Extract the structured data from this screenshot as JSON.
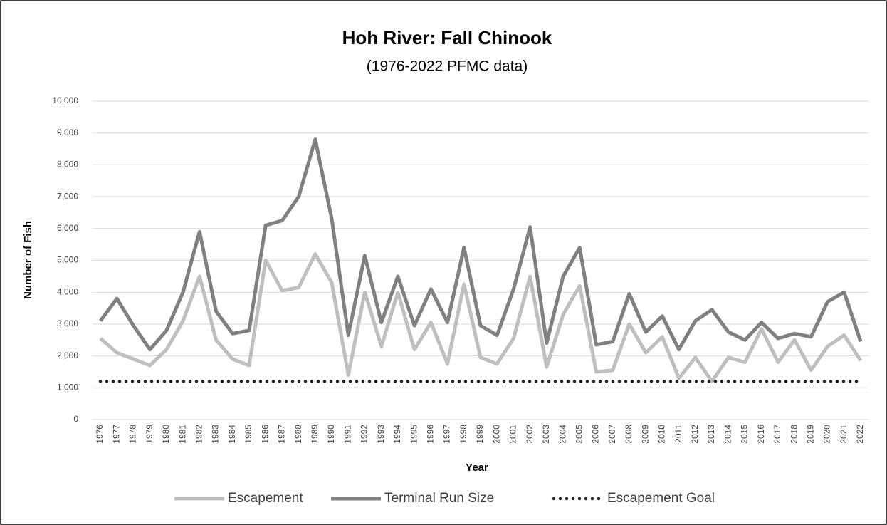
{
  "chart_data": {
    "type": "line",
    "title": "Hoh River: Fall Chinook",
    "subtitle": "(1976-2022 PFMC data)",
    "x_label": "Year",
    "y_label": "Number of Fish",
    "categories": [
      "1976",
      "1977",
      "1978",
      "1979",
      "1980",
      "1981",
      "1982",
      "1983",
      "1984",
      "1985",
      "1986",
      "1987",
      "1988",
      "1989",
      "1990",
      "1991",
      "1992",
      "1993",
      "1994",
      "1995",
      "1996",
      "1997",
      "1998",
      "1999",
      "2000",
      "2001",
      "2002",
      "2003",
      "2004",
      "2005",
      "2006",
      "2007",
      "2008",
      "2009",
      "2010",
      "2011",
      "2012",
      "2013",
      "2014",
      "2015",
      "2016",
      "2017",
      "2018",
      "2019",
      "2020",
      "2021",
      "2022"
    ],
    "series": [
      {
        "name": "Escapement",
        "color": "#bfbfbf",
        "dash": "solid",
        "values": [
          2550,
          2100,
          1900,
          1700,
          2200,
          3100,
          4500,
          2500,
          1900,
          1700,
          5000,
          4050,
          4150,
          5200,
          4300,
          1400,
          4000,
          2300,
          4000,
          2200,
          3050,
          1750,
          4250,
          1950,
          1750,
          2550,
          4500,
          1650,
          3300,
          4200,
          1500,
          1550,
          3000,
          2100,
          2600,
          1300,
          1950,
          1200,
          1950,
          1800,
          2850,
          1800,
          2500,
          1550,
          2300,
          2650,
          1850
        ]
      },
      {
        "name": "Terminal Run Size",
        "color": "#808080",
        "dash": "solid",
        "values": [
          3100,
          3800,
          2950,
          2200,
          2800,
          4000,
          5900,
          3400,
          2700,
          2800,
          6100,
          6250,
          7000,
          8800,
          6300,
          2650,
          5150,
          3050,
          4500,
          2950,
          4100,
          3050,
          5400,
          2950,
          2650,
          4100,
          6050,
          2400,
          4500,
          5400,
          2350,
          2450,
          3950,
          2750,
          3250,
          2200,
          3100,
          3450,
          2750,
          2500,
          3050,
          2550,
          2700,
          2600,
          3700,
          4000,
          2450
        ]
      },
      {
        "name": "Escapement Goal",
        "color": "#262626",
        "dash": "dotted",
        "values": [
          1200,
          1200,
          1200,
          1200,
          1200,
          1200,
          1200,
          1200,
          1200,
          1200,
          1200,
          1200,
          1200,
          1200,
          1200,
          1200,
          1200,
          1200,
          1200,
          1200,
          1200,
          1200,
          1200,
          1200,
          1200,
          1200,
          1200,
          1200,
          1200,
          1200,
          1200,
          1200,
          1200,
          1200,
          1200,
          1200,
          1200,
          1200,
          1200,
          1200,
          1200,
          1200,
          1200,
          1200,
          1200,
          1200,
          1200
        ]
      }
    ],
    "ylim": [
      0,
      10000
    ],
    "yticks": [
      0,
      {
        "value": 1000,
        "label": "1,000"
      },
      {
        "value": 2000,
        "label": "2,000"
      },
      {
        "value": 3000,
        "label": "3,000"
      },
      {
        "value": 4000,
        "label": "4,000"
      },
      {
        "value": 5000,
        "label": "5,000"
      },
      {
        "value": 6000,
        "label": "6,000"
      },
      {
        "value": 7000,
        "label": "7,000"
      },
      {
        "value": 8000,
        "label": "8,000"
      },
      {
        "value": 9000,
        "label": "9,000"
      },
      {
        "value": 10000,
        "label": "10,000"
      }
    ],
    "grid": true,
    "legend": "bottom"
  }
}
